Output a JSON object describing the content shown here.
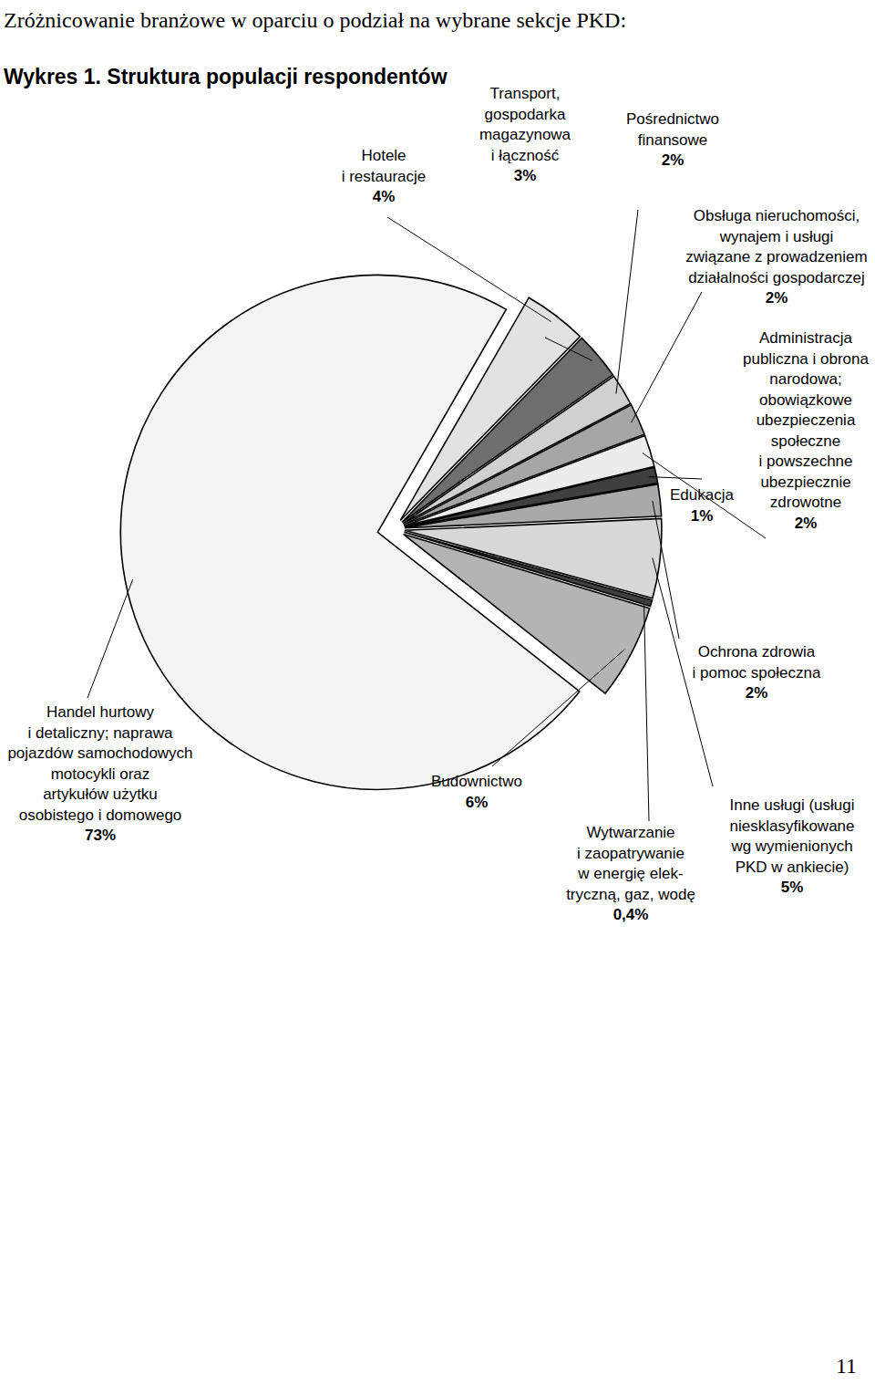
{
  "chart_data": {
    "type": "pie",
    "title": "Wykres 1. Struktura populacji respondentów",
    "annotations": [
      "Zróżnicowanie branżowe w oparciu o podział na wybrane sekcje PKD:",
      "11"
    ],
    "categories": [
      "Hotele\ni restauracje",
      "Transport,\ngospodarka\nmagazynowa\ni łączność",
      "Pośrednictwo\nfinansowe",
      "Obsługa nieruchomości,\nwynajem i usługi\nzwiązane z prowadzeniem\ndziałalności gospodarczej",
      "Administracja\npubliczna i obrona\nnarodowa;\nobowiązkowe\nubezpieczenia\nspołeczne\ni powszechne\nubezpiecznie\nzdrowotne",
      "Edukacja",
      "Ochrona zdrowia\ni pomoc społeczna",
      "Inne usługi (usługi\nniesklasyfikowane\nwg wymienionych\nPKD w ankiecie)",
      "Wytwarzanie\ni zaopatrywanie\nw energię elek-\ntryczną, gaz, wodę",
      "Budownictwo",
      "Handel hurtowy\ni detaliczny; naprawa\npojazdów samochodowych\nmotocykli oraz\nartykułów użytku\nosobistego i domowego"
    ],
    "values": [
      4,
      3,
      2,
      2,
      2,
      1,
      2,
      5,
      0.4,
      6,
      73
    ],
    "value_labels": [
      "4%",
      "3%",
      "2%",
      "2%",
      "2%",
      "1%",
      "2%",
      "5%",
      "0,4%",
      "6%",
      "73%"
    ],
    "data_labels": true,
    "colors": [
      "#e2e2e2",
      "#6e6e6e",
      "#d0d0d0",
      "#a6a6a6",
      "#ececec",
      "#3f3f3f",
      "#a9a9a9",
      "#d8d8d8",
      "#3f3f3f",
      "#b4b4b4",
      "#f4f4f4"
    ]
  }
}
